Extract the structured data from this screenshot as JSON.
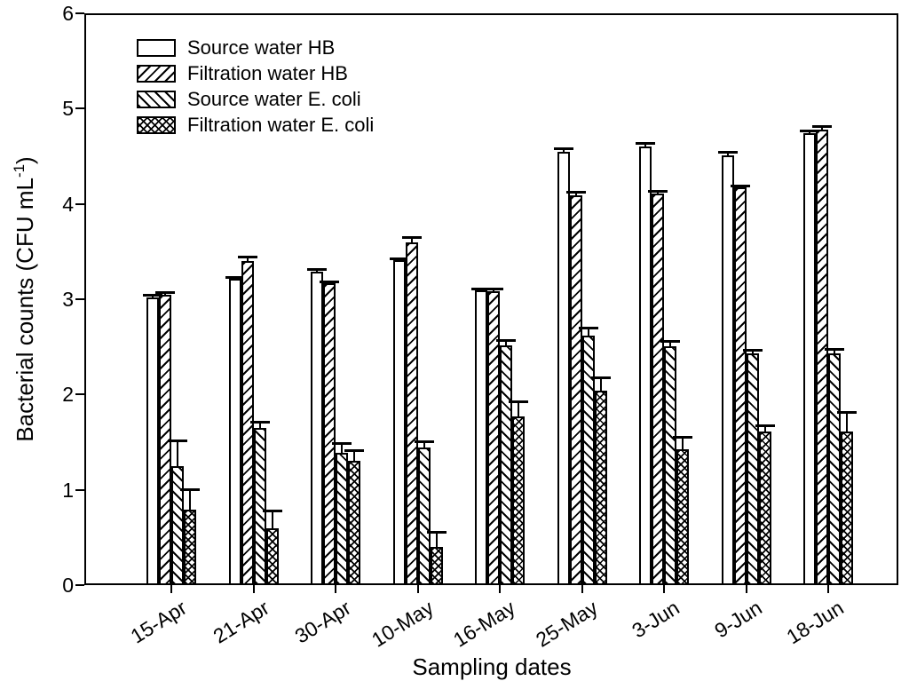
{
  "figure": {
    "background_color": "#ffffff",
    "line_color": "#000000"
  },
  "chart_data": {
    "type": "bar",
    "title": "",
    "xlabel": "Sampling dates",
    "ylabel": "Bacterial counts (CFU mL⁻¹)",
    "ylabel_parts": {
      "prefix": "Bacterial counts (CFU mL",
      "sup": "-1",
      "suffix": ")"
    },
    "ylim": [
      0,
      6
    ],
    "yticks": [
      "0",
      "1",
      "2",
      "3",
      "4",
      "5",
      "6"
    ],
    "grid": false,
    "legend_position": "top-left-inside",
    "error_bars": "upper-only",
    "categories": [
      "15-Apr",
      "21-Apr",
      "30-Apr",
      "10-May",
      "16-May",
      "25-May",
      "3-Jun",
      "9-Jun",
      "18-Jun"
    ],
    "series": [
      {
        "name": "Source water HB",
        "pattern": "none",
        "values": [
          3.02,
          3.21,
          3.29,
          3.41,
          3.09,
          4.55,
          4.6,
          4.51,
          4.74
        ],
        "errors": [
          0.03,
          0.02,
          0.03,
          0.02,
          0.02,
          0.03,
          0.04,
          0.04,
          0.03
        ]
      },
      {
        "name": "Filtration water HB",
        "pattern": "diagonal-up",
        "values": [
          3.05,
          3.4,
          3.17,
          3.6,
          3.08,
          4.09,
          4.11,
          4.17,
          4.78
        ],
        "errors": [
          0.02,
          0.05,
          0.02,
          0.05,
          0.03,
          0.04,
          0.03,
          0.02,
          0.04
        ]
      },
      {
        "name": "Source water E. coli",
        "pattern": "diagonal-down",
        "values": [
          1.25,
          1.65,
          1.39,
          1.44,
          2.52,
          2.62,
          2.51,
          2.43,
          2.43
        ],
        "errors": [
          0.27,
          0.06,
          0.1,
          0.07,
          0.05,
          0.08,
          0.05,
          0.04,
          0.05
        ]
      },
      {
        "name": "Filtration water E. coli",
        "pattern": "crosshatch",
        "values": [
          0.79,
          0.6,
          1.3,
          0.4,
          1.77,
          2.04,
          1.43,
          1.61,
          1.61
        ],
        "errors": [
          0.22,
          0.18,
          0.12,
          0.16,
          0.16,
          0.14,
          0.13,
          0.07,
          0.21
        ]
      }
    ]
  }
}
